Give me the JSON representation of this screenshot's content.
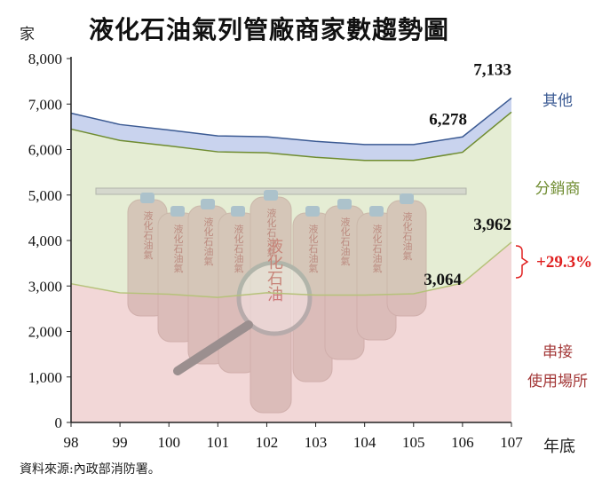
{
  "title": "液化石油氣列管廠商家數趨勢圖",
  "unit_label": "家",
  "source": "資料來源:內政部消防署。",
  "x_axis_suffix": "年底",
  "growth_label": "+29.3%",
  "bottle_text": "液化石油氣",
  "magnifier_text": "液化石油",
  "colors": {
    "other_band": "#c9d3ee",
    "other_line": "#3b5a93",
    "distributor_band": "#e5edd4",
    "distributor_line": "#6f8c30",
    "direct_band": "#f2d7d7",
    "direct_line": "#b6c27a",
    "growth": "#e02020",
    "axis": "#222222"
  },
  "chart_data": {
    "type": "area",
    "stacked": true,
    "title": "液化石油氣列管廠商家數趨勢圖",
    "ylabel": "家",
    "xlabel": "年底",
    "ylim": [
      0,
      8000
    ],
    "yticks": [
      0,
      1000,
      2000,
      3000,
      4000,
      5000,
      6000,
      7000,
      8000
    ],
    "ytick_labels": [
      "0",
      "1,000",
      "2,000",
      "3,000",
      "4,000",
      "5,000",
      "6,000",
      "7,000",
      "8,000"
    ],
    "categories": [
      "98",
      "99",
      "100",
      "101",
      "102",
      "103",
      "104",
      "105",
      "106",
      "107"
    ],
    "series": [
      {
        "name": "串接使用場所",
        "values": [
          3050,
          2850,
          2820,
          2750,
          2850,
          2800,
          2800,
          2830,
          3064,
          3962
        ]
      },
      {
        "name": "分銷商",
        "values": [
          3400,
          3350,
          3260,
          3200,
          3080,
          3030,
          2960,
          2930,
          2876,
          2861
        ]
      },
      {
        "name": "其他",
        "values": [
          350,
          350,
          350,
          350,
          350,
          350,
          350,
          350,
          338,
          310
        ]
      }
    ],
    "totals": [
      6800,
      6550,
      6430,
      6300,
      6280,
      6180,
      6110,
      6110,
      6278,
      7133
    ],
    "data_labels": [
      {
        "text": "7,133"
      },
      {
        "text": "6,278"
      },
      {
        "text": "3,962"
      },
      {
        "text": "3,064"
      }
    ],
    "series_labels": [
      "其他",
      "分銷商",
      "串接\n使用場所"
    ]
  }
}
